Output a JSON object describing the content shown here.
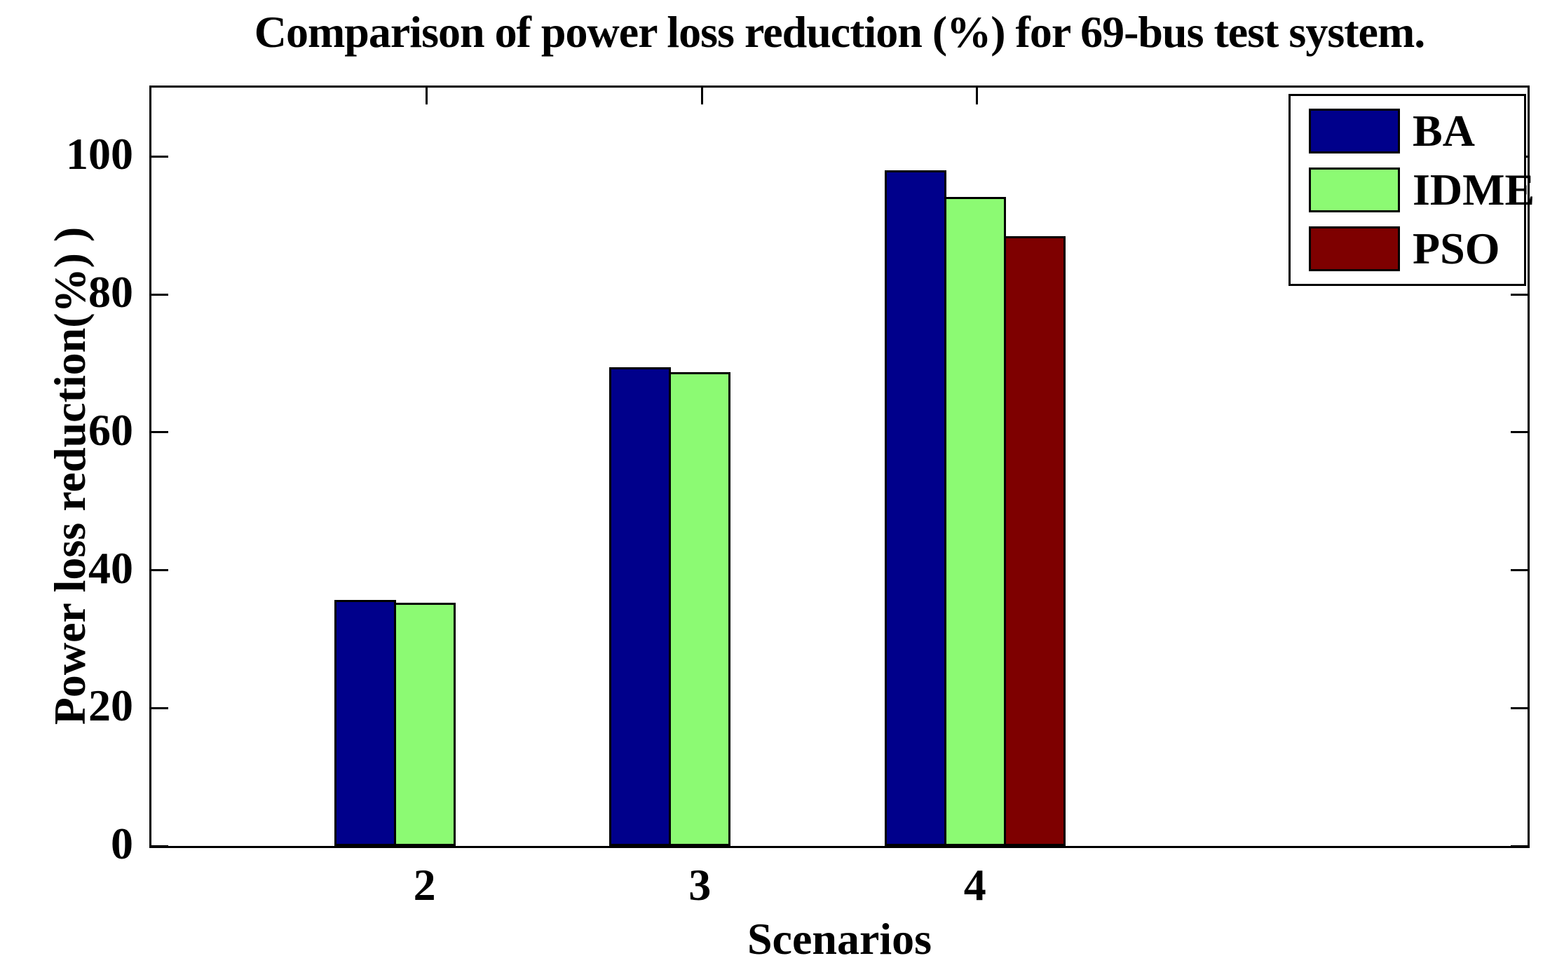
{
  "figure": {
    "title": "Comparison of power loss reduction (%) for 69-bus test system.",
    "xlabel": "Scenarios",
    "ylabel": "Power loss reduction(%) )"
  },
  "chart_data": {
    "type": "bar",
    "title": "Comparison of power loss reduction (%) for 69-bus test system.",
    "xlabel": "Scenarios",
    "ylabel": "Power loss reduction(%) )",
    "categories": [
      2,
      3,
      4
    ],
    "series": [
      {
        "name": "BA",
        "color": "#00008B",
        "values": [
          35.7,
          69.4,
          98.0
        ]
      },
      {
        "name": "IDME",
        "color": "#8CFA73",
        "values": [
          35.3,
          68.7,
          94.1
        ]
      },
      {
        "name": "PSO",
        "color": "#7E0000",
        "values": [
          0,
          0,
          88.5
        ]
      }
    ],
    "ylim": [
      0,
      110
    ],
    "xlim": [
      1,
      6
    ],
    "yticks": [
      0,
      20,
      40,
      60,
      80,
      100
    ],
    "grid": false,
    "legend_position": "top-right",
    "legend_entries": [
      "BA",
      "IDME",
      "PSO"
    ],
    "notes": "Zero-value bars (PSO at scenarios 2 and 3) are not drawn."
  }
}
